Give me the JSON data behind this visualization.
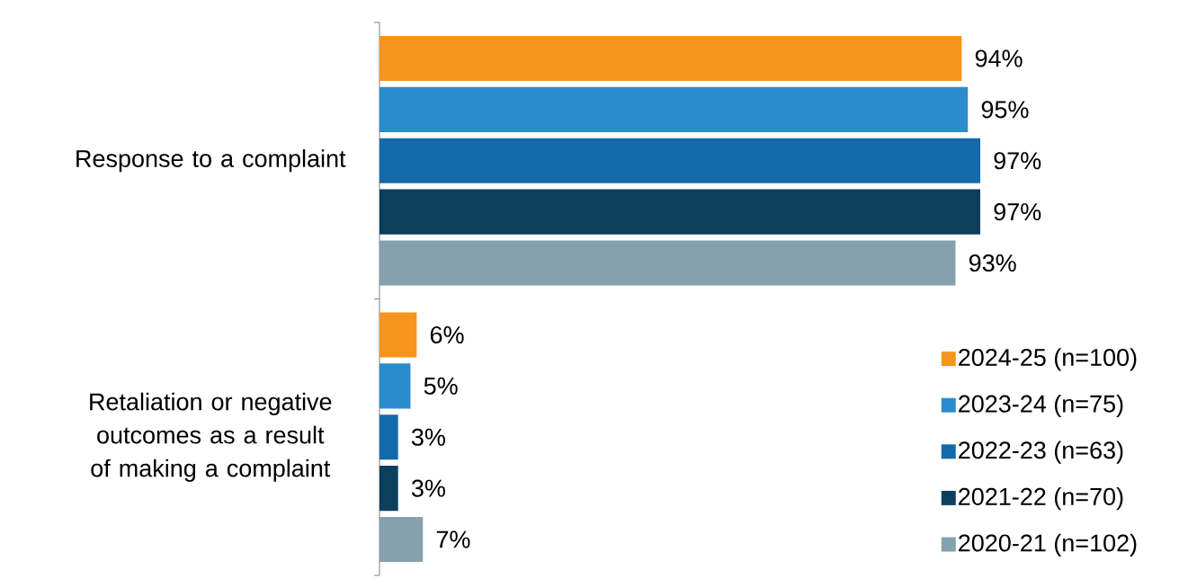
{
  "chart_data": {
    "type": "bar",
    "orientation": "horizontal",
    "categories": [
      "Response to a complaint",
      "Retaliation or negative outcomes as a result of making a complaint"
    ],
    "legend": "bottom right",
    "series": [
      {
        "name": "2024-25 (n=100)",
        "color": "#f7941d",
        "values": [
          94,
          6
        ],
        "value_labels": [
          "94%",
          "6%"
        ]
      },
      {
        "name": "2023-24 (n=75)",
        "color": "#2b8ccb",
        "values": [
          95,
          5
        ],
        "value_labels": [
          "95%",
          "5%"
        ]
      },
      {
        "name": "2022-23 (n=63)",
        "color": "#1469ab",
        "values": [
          97,
          3
        ],
        "value_labels": [
          "97%",
          "3%"
        ]
      },
      {
        "name": "2021-22 (n=70)",
        "color": "#0b3f5c",
        "values": [
          97,
          3
        ],
        "value_labels": [
          "97%",
          "3%"
        ]
      },
      {
        "name": "2020-21 (n=102)",
        "color": "#84a1ad",
        "values": [
          93,
          7
        ],
        "value_labels": [
          "93%",
          "7%"
        ]
      }
    ]
  }
}
